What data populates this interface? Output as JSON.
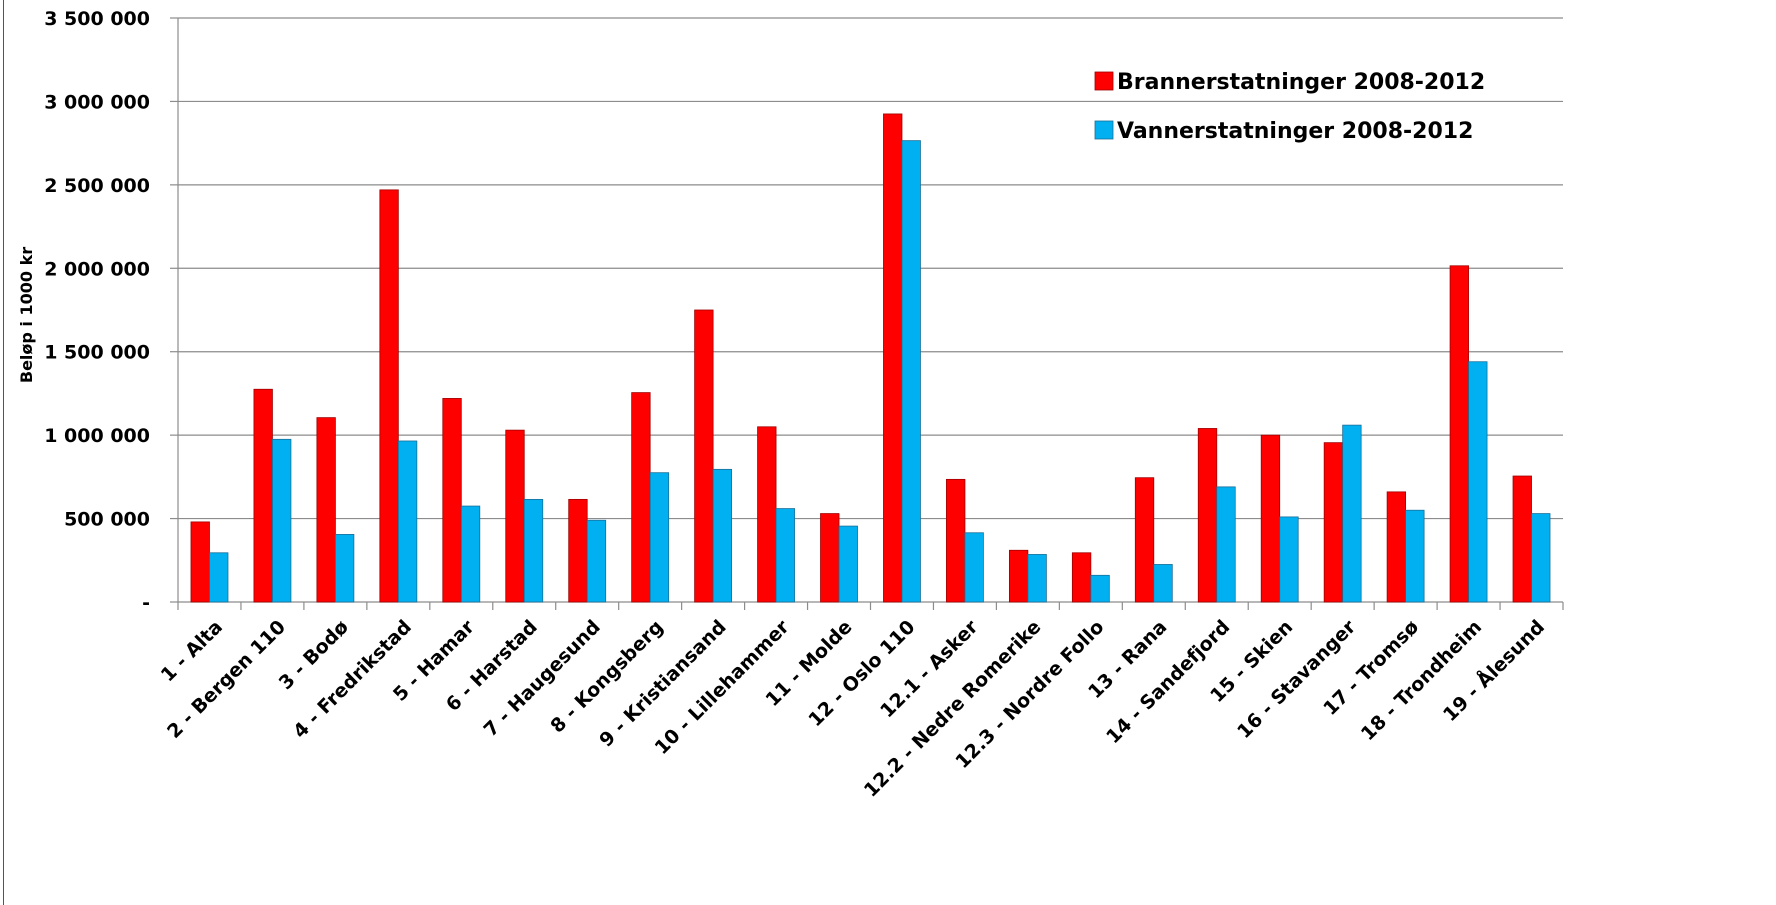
{
  "chart_data": {
    "type": "bar",
    "ylabel": "Beløp i 1000 kr",
    "xlabel": "",
    "ylim": [
      0,
      3500000
    ],
    "yticks": [
      {
        "value": 0,
        "label": "-"
      },
      {
        "value": 500000,
        "label": "500 000"
      },
      {
        "value": 1000000,
        "label": "1 000 000"
      },
      {
        "value": 1500000,
        "label": "1 500 000"
      },
      {
        "value": 2000000,
        "label": "2 000 000"
      },
      {
        "value": 2500000,
        "label": "2 500 000"
      },
      {
        "value": 3000000,
        "label": "3 000 000"
      },
      {
        "value": 3500000,
        "label": "3 500 000"
      }
    ],
    "grid": true,
    "legend_position": "top-right",
    "categories": [
      "1 - Alta",
      "2 - Bergen 110",
      "3 - Bodø",
      "4 - Fredrikstad",
      "5 - Hamar",
      "6 - Harstad",
      "7 - Haugesund",
      "8 - Kongsberg",
      "9 - Kristiansand",
      "10 - Lillehammer",
      "11 - Molde",
      "12 - Oslo 110",
      "12.1 - Asker",
      "12.2 - Nedre Romerike",
      "12.3 - Nordre Follo",
      "13 - Rana",
      "14 - Sandefjord",
      "15 - Skien",
      "16 - Stavanger",
      "17 - Tromsø",
      "18 - Trondheim",
      "19 - Ålesund"
    ],
    "series": [
      {
        "name": "Brannerstatninger 2008-2012",
        "color": "#ff0000",
        "values": [
          480000,
          1275000,
          1105000,
          2470000,
          1220000,
          1030000,
          615000,
          1255000,
          1750000,
          1050000,
          530000,
          2925000,
          735000,
          310000,
          295000,
          745000,
          1040000,
          1000000,
          955000,
          660000,
          2015000,
          755000
        ]
      },
      {
        "name": "Vannerstatninger 2008-2012",
        "color": "#00b0f0",
        "values": [
          295000,
          975000,
          405000,
          965000,
          575000,
          615000,
          490000,
          775000,
          795000,
          560000,
          455000,
          2765000,
          415000,
          285000,
          160000,
          225000,
          690000,
          510000,
          1060000,
          550000,
          1440000,
          530000
        ]
      }
    ]
  }
}
